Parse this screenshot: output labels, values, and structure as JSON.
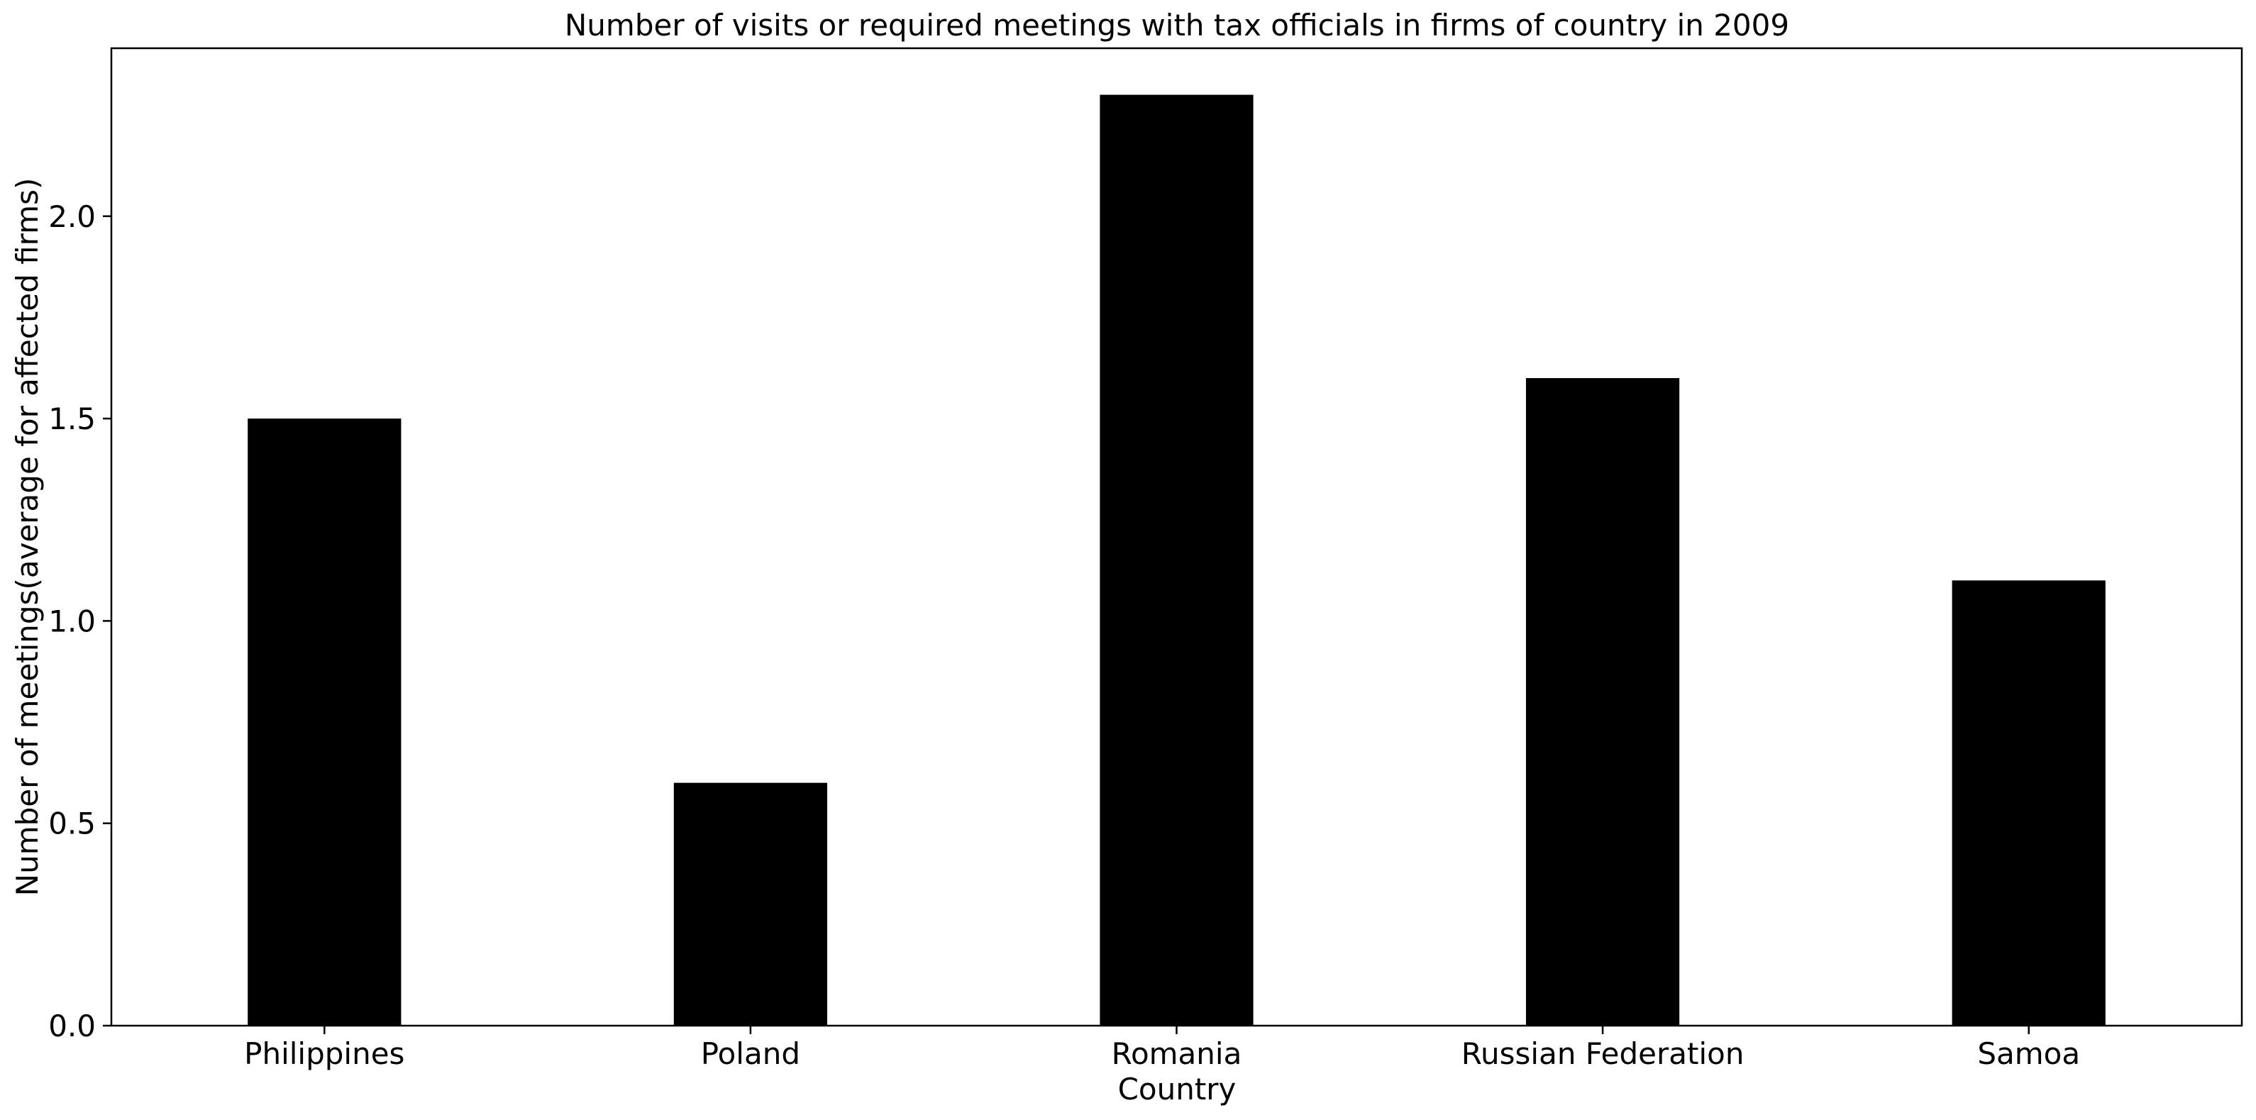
{
  "chart_data": {
    "type": "bar",
    "title": "Number of visits or required meetings with tax officials in firms of country in 2009",
    "xlabel": "Country",
    "ylabel": "Number of meetings(average for affected firms)",
    "categories": [
      "Philippines",
      "Poland",
      "Romania",
      "Russian Federation",
      "Samoa"
    ],
    "values": [
      1.5,
      0.6,
      2.3,
      1.6,
      1.1
    ],
    "ylim": [
      0,
      2.415
    ],
    "yticks": [
      0.0,
      0.5,
      1.0,
      1.5,
      2.0
    ],
    "ytick_labels": [
      "0.0",
      "0.5",
      "1.0",
      "1.5",
      "2.0"
    ],
    "bar_color": "#000000",
    "grid": false,
    "legend": false
  }
}
